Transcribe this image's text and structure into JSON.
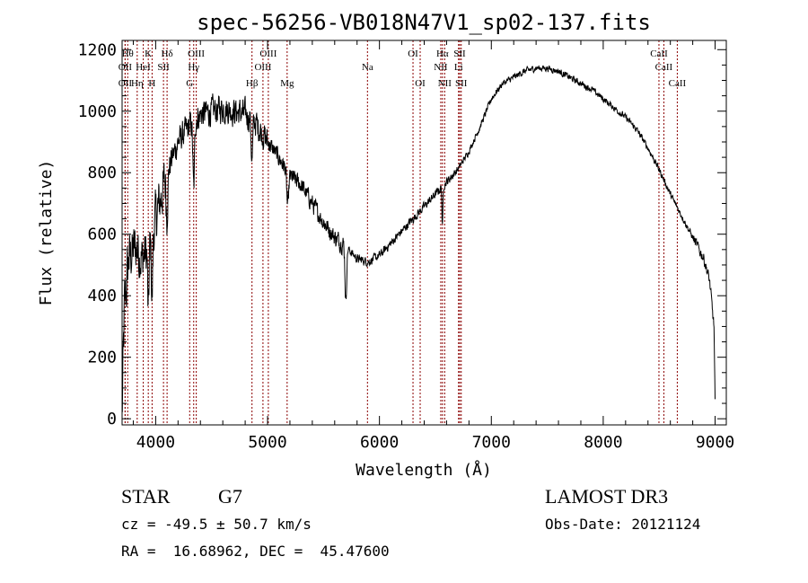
{
  "chart_data": {
    "type": "line",
    "title": "spec-56256-VB018N47V1_sp02-137.fits",
    "xlabel": "Wavelength (Å)",
    "ylabel": "Flux (relative)",
    "xlim": [
      3700,
      9100
    ],
    "ylim": [
      -20,
      1230
    ],
    "xticks": [
      4000,
      5000,
      6000,
      7000,
      8000,
      9000
    ],
    "xtick_labels": [
      "4000",
      "5000",
      "6000",
      "7000",
      "8000",
      "9000"
    ],
    "yticks": [
      0,
      200,
      400,
      600,
      800,
      1000,
      1200
    ],
    "ytick_labels": [
      "0",
      "200",
      "400",
      "600",
      "800",
      "1000",
      "1200"
    ],
    "line_color": "#000000",
    "marker_color": "#8b0000",
    "continuum": {
      "x": [
        3700,
        3720,
        3760,
        3820,
        3880,
        3950,
        4000,
        4100,
        4200,
        4300,
        4400,
        4500,
        4600,
        4700,
        4800,
        4900,
        5000,
        5100,
        5200,
        5300,
        5400,
        5500,
        5600,
        5700,
        5750,
        5800,
        5900,
        6000,
        6100,
        6200,
        6300,
        6400,
        6500,
        6600,
        6700,
        6800,
        6900,
        7000,
        7100,
        7200,
        7300,
        7400,
        7500,
        7600,
        7700,
        7800,
        7900,
        8000,
        8100,
        8200,
        8300,
        8400,
        8500,
        8600,
        8700,
        8800,
        8900,
        8950,
        8990,
        9000
      ],
      "y": [
        0,
        350,
        520,
        560,
        520,
        560,
        650,
        800,
        900,
        950,
        990,
        1000,
        1010,
        1000,
        990,
        960,
        900,
        850,
        790,
        760,
        700,
        640,
        590,
        560,
        540,
        520,
        510,
        530,
        570,
        610,
        650,
        690,
        730,
        770,
        810,
        870,
        950,
        1040,
        1090,
        1110,
        1130,
        1140,
        1140,
        1130,
        1110,
        1090,
        1070,
        1040,
        1010,
        980,
        940,
        880,
        810,
        730,
        660,
        590,
        520,
        450,
        300,
        50
      ]
    },
    "noise_model": [
      {
        "from": 3700,
        "to": 3750,
        "amplitude": 160
      },
      {
        "from": 3750,
        "to": 4100,
        "amplitude": 130
      },
      {
        "from": 4100,
        "to": 5000,
        "amplitude": 70
      },
      {
        "from": 5000,
        "to": 5700,
        "amplitude": 45
      },
      {
        "from": 5700,
        "to": 6700,
        "amplitude": 22
      },
      {
        "from": 6700,
        "to": 8800,
        "amplitude": 16
      },
      {
        "from": 8800,
        "to": 9000,
        "amplitude": 28
      }
    ],
    "absorption_dips": [
      {
        "x": 3934,
        "depth": 220,
        "width": 8
      },
      {
        "x": 3968,
        "depth": 200,
        "width": 8
      },
      {
        "x": 4102,
        "depth": 140,
        "width": 10
      },
      {
        "x": 4340,
        "depth": 220,
        "width": 10
      },
      {
        "x": 4861,
        "depth": 130,
        "width": 10
      },
      {
        "x": 5180,
        "depth": 110,
        "width": 12
      },
      {
        "x": 5700,
        "depth": 180,
        "width": 10
      },
      {
        "x": 6563,
        "depth": 130,
        "width": 6
      }
    ],
    "spectral_lines": [
      {
        "x": 3750,
        "label": "Hθ",
        "row": 0
      },
      {
        "x": 3727,
        "label": "OII",
        "row": 1
      },
      {
        "x": 3727,
        "label": "OII",
        "row": 2
      },
      {
        "x": 3835,
        "label": "Hη",
        "row": 2
      },
      {
        "x": 3889,
        "label": "HeI",
        "row": 1
      },
      {
        "x": 3934,
        "label": "K",
        "row": 0
      },
      {
        "x": 3968,
        "label": "H",
        "row": 2
      },
      {
        "x": 4070,
        "label": "SII",
        "row": 1
      },
      {
        "x": 4102,
        "label": "Hδ",
        "row": 0
      },
      {
        "x": 4304,
        "label": "G",
        "row": 2
      },
      {
        "x": 4340,
        "label": "Hγ",
        "row": 1
      },
      {
        "x": 4363,
        "label": "OIII",
        "row": 0
      },
      {
        "x": 4861,
        "label": "Hβ",
        "row": 2
      },
      {
        "x": 4959,
        "label": "OIII",
        "row": 1
      },
      {
        "x": 5007,
        "label": "OIII",
        "row": 0
      },
      {
        "x": 5175,
        "label": "Mg",
        "row": 2
      },
      {
        "x": 5893,
        "label": "Na",
        "row": 1
      },
      {
        "x": 6300,
        "label": "OI",
        "row": 0
      },
      {
        "x": 6364,
        "label": "OI",
        "row": 2
      },
      {
        "x": 6548,
        "label": "NII",
        "row": 1
      },
      {
        "x": 6563,
        "label": "Hα",
        "row": 0
      },
      {
        "x": 6583,
        "label": "NII",
        "row": 2
      },
      {
        "x": 6707,
        "label": "Li",
        "row": 1
      },
      {
        "x": 6717,
        "label": "SII",
        "row": 0
      },
      {
        "x": 6731,
        "label": "SII",
        "row": 2
      },
      {
        "x": 8498,
        "label": "CaII",
        "row": 0
      },
      {
        "x": 8542,
        "label": "CaII",
        "row": 1
      },
      {
        "x": 8662,
        "label": "CaII",
        "row": 2
      }
    ]
  },
  "info": {
    "object_class": "STAR",
    "subclass": "G7",
    "survey": "LAMOST DR3",
    "redshift": "cz = -49.5 ± 50.7 km/s",
    "obs_date": "Obs-Date: 20121124",
    "coords": "RA =  16.68962, DEC =  45.47600"
  }
}
